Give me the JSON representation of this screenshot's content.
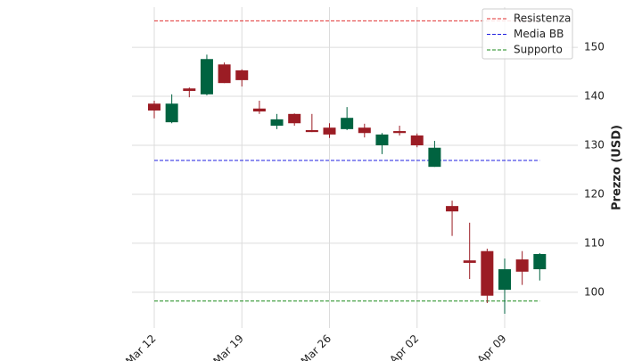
{
  "chart_data": {
    "type": "candlestick",
    "y_label": "Prezzo (USD)",
    "categories": [
      "Mar 12",
      null,
      null,
      null,
      null,
      "Mar 19",
      null,
      null,
      null,
      null,
      "Mar 26",
      null,
      null,
      null,
      null,
      "Apr 02",
      null,
      null,
      null,
      null,
      "Apr 09",
      null,
      null
    ],
    "open": [
      138.5,
      134.7,
      141.6,
      140.4,
      146.5,
      145.3,
      137.5,
      134.0,
      136.4,
      133.1,
      133.6,
      133.3,
      133.6,
      130.0,
      132.9,
      132.0,
      125.6,
      117.6,
      106.5,
      108.4,
      100.5,
      106.7,
      104.7
    ],
    "high": [
      139.1,
      140.4,
      141.8,
      148.5,
      146.9,
      145.5,
      139.1,
      136.4,
      136.5,
      136.4,
      134.5,
      137.8,
      134.4,
      132.5,
      134.0,
      132.4,
      130.9,
      118.7,
      114.2,
      108.9,
      106.9,
      108.4,
      108.0
    ],
    "low": [
      135.5,
      134.5,
      139.8,
      140.2,
      142.7,
      142.0,
      136.4,
      133.3,
      134.0,
      132.7,
      131.5,
      133.1,
      131.6,
      128.2,
      132.0,
      129.6,
      125.6,
      111.5,
      102.7,
      97.8,
      95.6,
      101.5,
      102.4
    ],
    "close": [
      137.1,
      138.5,
      141.1,
      147.6,
      142.7,
      143.3,
      136.9,
      135.3,
      134.5,
      132.7,
      132.2,
      135.6,
      132.5,
      132.2,
      132.5,
      130.0,
      129.5,
      116.5,
      106.0,
      99.3,
      104.7,
      104.2,
      107.8
    ],
    "up_color": "#006340",
    "down_color": "#9b1c24",
    "lines": [
      {
        "name": "Resistenza",
        "color": "#e03030",
        "value": 155.4
      },
      {
        "name": "Media BB",
        "color": "#2020e0",
        "value": 126.9
      },
      {
        "name": "Supporto",
        "color": "#1a8a1a",
        "value": 98.2
      }
    ],
    "ylim": [
      92.7,
      158.2
    ],
    "yticks": [
      100,
      110,
      120,
      130,
      140,
      150
    ],
    "grid": true
  }
}
